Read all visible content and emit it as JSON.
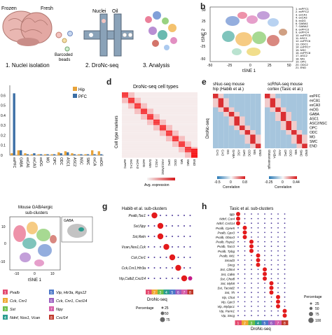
{
  "panel_a": {
    "frozen": "Frozen",
    "fresh": "Fresh",
    "nuclei": "Nuclei",
    "oil": "Oil",
    "barcoded_beads": "Barcoded\nbeads",
    "step1": "1. Nuclei isolation",
    "step2": "2. DroNc-seq",
    "step3": "3. Analysis"
  },
  "panel_b": {
    "letter": "b",
    "xlabel": "tSNE 1",
    "ylabel": "tSNE 2",
    "xticks": [
      "-50",
      "-25",
      "0",
      "25",
      "50"
    ],
    "yticks": [
      "50",
      "25",
      "0",
      "-25",
      "-50"
    ],
    "legend": [
      "1. exPFC1",
      "2. exPFC2",
      "3. exCA1",
      "4. exCA3",
      "5. exDG",
      "6. GABA1",
      "7. GABA2",
      "8. exPFC3",
      "9. exPFC4",
      "10. exPFC5",
      "11. ASC1",
      "12. exPFC6",
      "13. ODC1",
      "14. exPFC7",
      "15. NSC",
      "16. exPFC8",
      "17. ASC2",
      "18. MG",
      "19. OPC",
      "20. ODC2",
      "21. END"
    ]
  },
  "panel_c": {
    "legend": [
      "Hip",
      "PFC"
    ],
    "colors": {
      "Hip": "#e8a33a",
      "PFC": "#3b6ea5"
    },
    "categories": [
      "exPFC",
      "GABA",
      "exCA1",
      "exCA3",
      "exDG",
      "MG",
      "OPC",
      "ODC",
      "ASC1",
      "ASC2",
      "NSC",
      "SMC",
      "exCA",
      "exDG"
    ],
    "chart_data": {
      "type": "bar",
      "categories": [
        "exPFC",
        "GABA",
        "exCA1",
        "exCA3",
        "exDG",
        "MG",
        "OPC",
        "ODC",
        "ASC1",
        "ASC2",
        "NSC",
        "SMC",
        "exCA",
        "exDG"
      ],
      "series": [
        {
          "name": "Hip",
          "values": [
            0.02,
            0.05,
            0.02,
            0.01,
            0.01,
            0.01,
            0.01,
            0.03,
            0.04,
            0.02,
            0.01,
            0.01,
            0.05,
            0.04
          ]
        },
        {
          "name": "PFC",
          "values": [
            0.62,
            0.05,
            0.01,
            0.02,
            0.01,
            0.01,
            0.01,
            0.02,
            0.03,
            0.01,
            0.01,
            0.01,
            0.01,
            0.01
          ]
        }
      ],
      "ylim": [
        0,
        0.7
      ],
      "yticks": [
        0.6,
        0.5,
        0.4,
        0.3,
        0.2,
        0.1,
        0
      ]
    }
  },
  "panel_d": {
    "letter": "d",
    "title": "DroNc-seq cell types",
    "ylabel": "Cell type markers",
    "columns": [
      "exPFC",
      "exCA1",
      "exCA3",
      "exDG",
      "GABA",
      "ASC1",
      "ASC2/NSC",
      "OPC",
      "ODC",
      "MG",
      "SMC",
      "END"
    ],
    "colorbar_label": "Avg. expression"
  },
  "panel_e": {
    "letter": "e",
    "title_left": "sNuc-seq mouse\nhip (Habib et al.)",
    "title_right": "scRNA-seq mouse\ncortex (Tasic et al.)",
    "ylabel": "DroNc-seq",
    "rows": [
      "exPFC",
      "exCA1",
      "exCA3",
      "exDG",
      "GABA",
      "ASC1",
      "ASC2/NSC",
      "OPC",
      "ODC",
      "MG",
      "SMC",
      "END"
    ],
    "cols_left": [
      "CA1",
      "CA3",
      "DG",
      "GABA",
      "ASC",
      "OPC",
      "ODC",
      "MG",
      "END"
    ],
    "cols_right": [
      "Glutamatergic",
      "GABA",
      "ASC",
      "OPC",
      "ODC",
      "MG",
      "SMC",
      "END"
    ],
    "cb_left": [
      "-0.5",
      "0",
      "0.8"
    ],
    "cb_right": [
      "-0.25",
      "0",
      "0.44"
    ],
    "cb_label": "Correlation"
  },
  "panel_f": {
    "letter": "f",
    "title": "Mouse GABAergic\nsub-clusters",
    "inset": "GABA",
    "xlabel": "tSNE 1",
    "yticks": [
      "10",
      "0",
      "-10"
    ],
    "xticks": [
      "-10",
      "0",
      "10"
    ],
    "legend": [
      {
        "n": "1",
        "t": "Pvalb",
        "c": "#e34a6f"
      },
      {
        "n": "2",
        "t": "Cck, Cnr1",
        "c": "#f0a830"
      },
      {
        "n": "3",
        "t": "Sst",
        "c": "#6cbf4a"
      },
      {
        "n": "4",
        "t": "Ndnf, Nos1, Vcan",
        "c": "#2a9d8f"
      },
      {
        "n": "5",
        "t": "Vip, Htr3a, Rgs12",
        "c": "#4c78c8"
      },
      {
        "n": "6",
        "t": "Cck, Cnr1, Cxcl14",
        "c": "#9b5fc0"
      },
      {
        "n": "7",
        "t": "Npy",
        "c": "#d65fa8"
      },
      {
        "n": "8",
        "t": "Cxcl14",
        "c": "#c0392b"
      }
    ]
  },
  "panel_g": {
    "letter": "g",
    "title": "Habib et al. sub-clusters",
    "rows": [
      "Pvalb,Tac1",
      "Sst,Npy",
      "Sst,Reln",
      "Vcan,Nos1,Cck",
      "Cck,Cnr1",
      "Cck,Cnr1,Htr3a",
      "Vip,Calb2,Cxcl14"
    ],
    "xlabel": "DroNc-seq",
    "cols": [
      "1",
      "2",
      "3",
      "4",
      "5",
      "6",
      "7",
      "8"
    ],
    "pct_title": "Percentage",
    "pct": [
      "25",
      "50",
      "75"
    ]
  },
  "panel_h": {
    "letter": "h",
    "title": "Tasic et al. sub-clusters",
    "rows": [
      "Igtp",
      "Ndnf, Car4",
      "Ndnf, Cxcl14",
      "Pvalb, Cpne5",
      "Pvalb, Gpx3",
      "Pvalb, Obox3",
      "Pvalb, Rspo2",
      "Pvalb, Tacr3",
      "Pvalb, Tpbg",
      "Pvalb, Wt1",
      "Smad3",
      "Sncg",
      "Sst, Cbln4",
      "Sst, Cdk6",
      "Sst, Chodl",
      "Sst, Myh8",
      "Sst, Tacstd2",
      "Sst, Th",
      "Vip, Chat",
      "Vip, Gpc3",
      "Vip, Mybpc1",
      "Vip, Parm1",
      "Vip, Sncg"
    ],
    "xlabel": "DroNc-seq",
    "cols": [
      "1",
      "2",
      "3",
      "4",
      "5",
      "6",
      "7",
      "8"
    ],
    "pct_title": "Percentage",
    "pct": [
      "25",
      "50",
      "75",
      "100"
    ]
  }
}
